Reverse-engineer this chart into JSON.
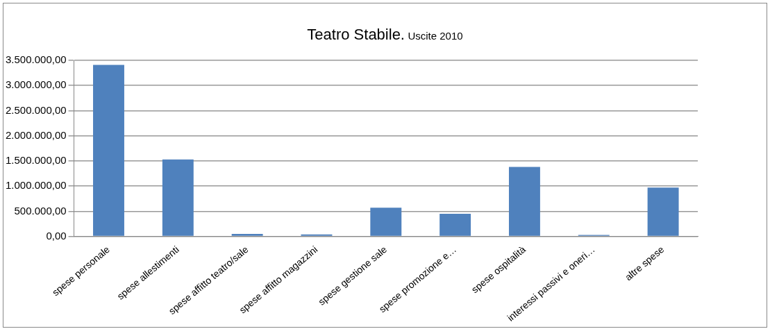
{
  "chart_data": {
    "type": "bar",
    "title": "Teatro Stabile.",
    "subtitle": "Uscite 2010",
    "categories": [
      "spese personale",
      "spese allestimenti",
      "spese affitto teatro/sale",
      "spese affitto magazzini",
      "spese gestione sale",
      "spese promozione e…",
      "spese ospitalità",
      "interessi passivi e oneri…",
      "altre spese"
    ],
    "values": [
      3410000,
      1530000,
      50000,
      40000,
      570000,
      450000,
      1380000,
      30000,
      970000
    ],
    "color": "#4f81bd",
    "ylim": [
      0,
      3500000
    ],
    "yticks": [
      {
        "value": 0,
        "label": "0,00"
      },
      {
        "value": 500000,
        "label": "500.000,00"
      },
      {
        "value": 1000000,
        "label": "1.000.000,00"
      },
      {
        "value": 1500000,
        "label": "1.500.000,00"
      },
      {
        "value": 2000000,
        "label": "2.000.000,00"
      },
      {
        "value": 2500000,
        "label": "2.500.000,00"
      },
      {
        "value": 3000000,
        "label": "3.000.000,00"
      },
      {
        "value": 3500000,
        "label": "3.500.000,00"
      }
    ],
    "grid": "y"
  }
}
